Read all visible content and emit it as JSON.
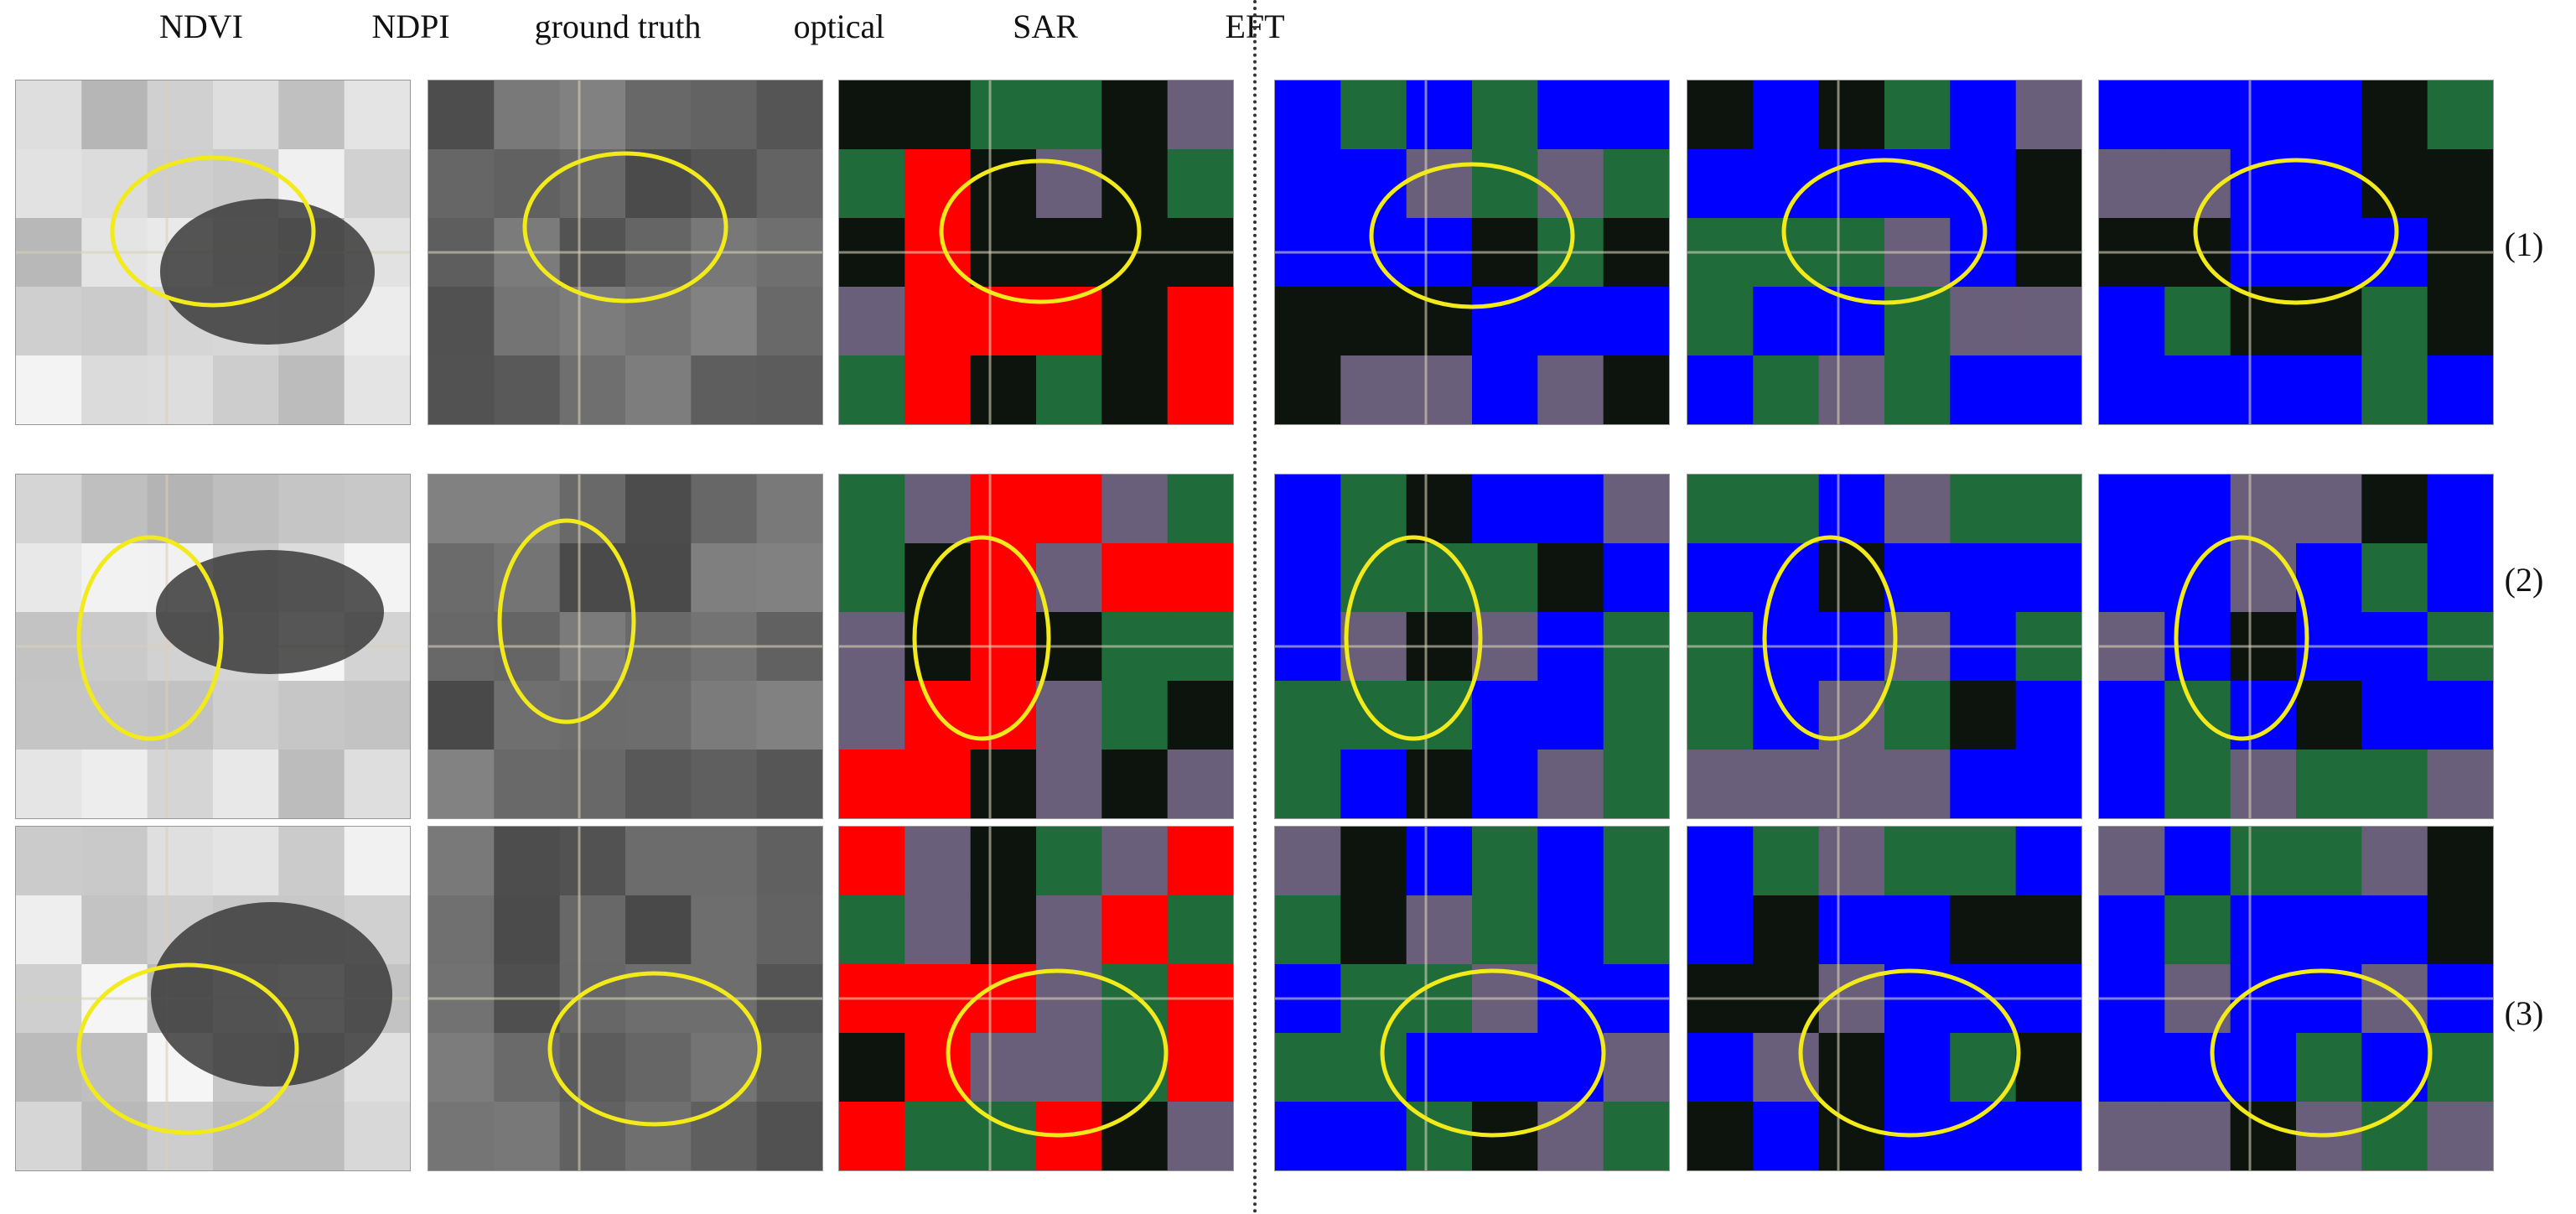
{
  "columns": [
    {
      "id": "ndvi",
      "label": "NDVI"
    },
    {
      "id": "ndpi",
      "label": "NDPI"
    },
    {
      "id": "gt",
      "label": "ground truth"
    },
    {
      "id": "optical",
      "label": "optical"
    },
    {
      "id": "sar",
      "label": "SAR"
    },
    {
      "id": "eft",
      "label": "EFT"
    }
  ],
  "rows": [
    {
      "label": "(1)"
    },
    {
      "label": "(2)"
    },
    {
      "label": "(3)"
    }
  ],
  "colors": {
    "highlight_ellipse": "#f2ea1a",
    "ground_truth_class": "#ff0000",
    "prediction_class": "#0000ff",
    "vegetation": "#1f6b3a",
    "dark_field": "#0d140e",
    "bare_field": "#6a5f7a"
  }
}
